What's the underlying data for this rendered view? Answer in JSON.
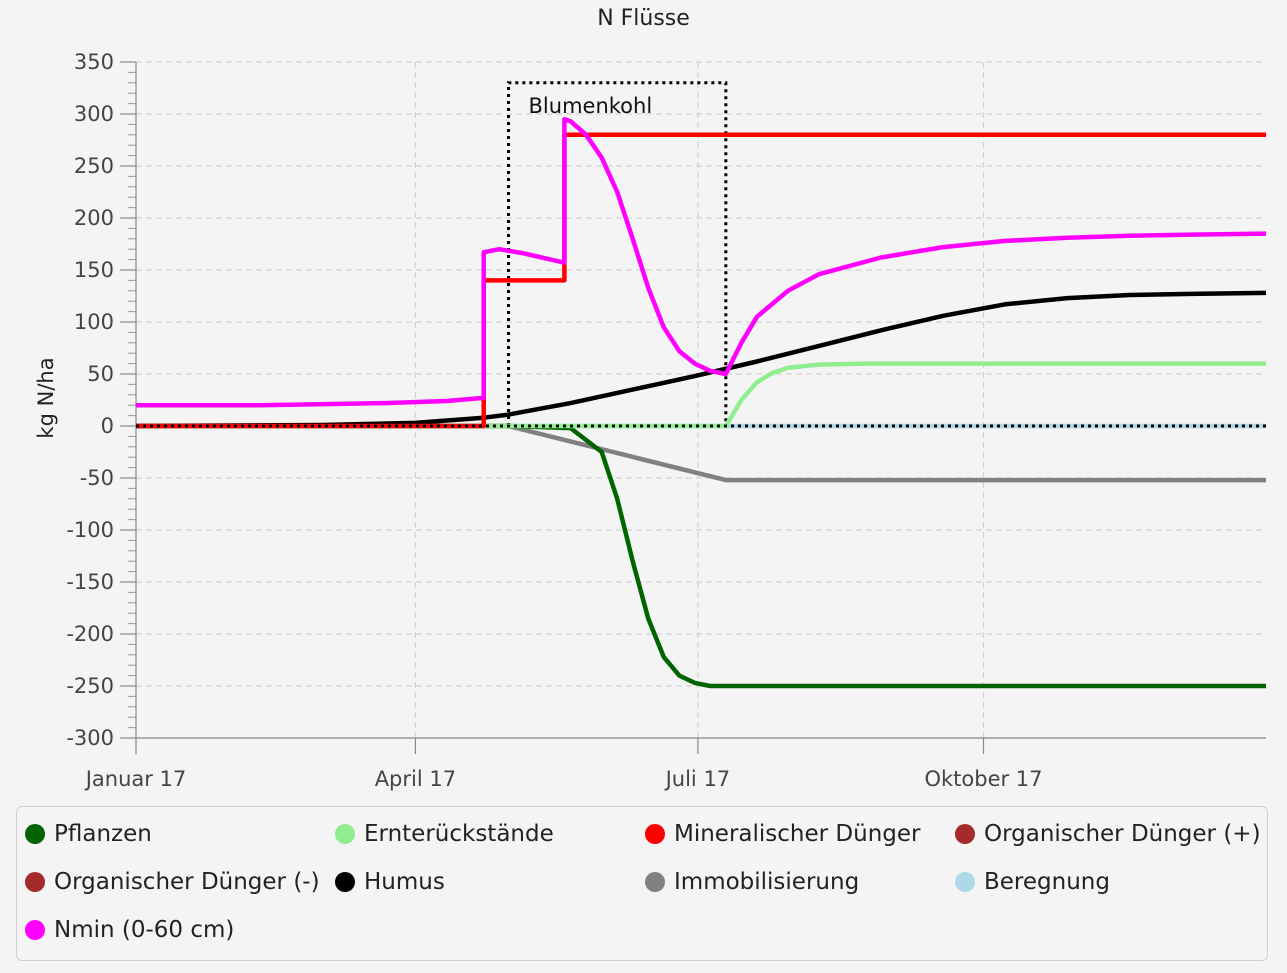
{
  "chart_data": {
    "type": "line",
    "title": "N Flüsse",
    "ylabel": "kg N/ha",
    "xlabel": "",
    "ylim": [
      -300,
      350
    ],
    "xlim": [
      0,
      364
    ],
    "y_ticks": [
      350,
      300,
      250,
      200,
      150,
      100,
      50,
      0,
      -50,
      -100,
      -150,
      -200,
      -250,
      -300
    ],
    "x_ticks": [
      {
        "label": "Januar 17",
        "day": 0
      },
      {
        "label": "April 17",
        "day": 90
      },
      {
        "label": "Juli 17",
        "day": 181
      },
      {
        "label": "Oktober 17",
        "day": 273
      }
    ],
    "grid": true,
    "legend_position": "bottom",
    "annotations": [
      {
        "label": "Blumenkohl",
        "type": "crop-period",
        "x_start": 120,
        "x_end": 190,
        "y_top": 330
      }
    ],
    "series": [
      {
        "name": "Pflanzen",
        "color": "#006400",
        "x": [
          0,
          120,
          140,
          150,
          155,
          160,
          165,
          170,
          175,
          180,
          185,
          190,
          364
        ],
        "y": [
          0,
          0,
          -2,
          -25,
          -70,
          -130,
          -185,
          -222,
          -240,
          -247,
          -250,
          -250,
          -250
        ]
      },
      {
        "name": "Ernterückstände",
        "color": "#90ee90",
        "x": [
          0,
          190,
          195,
          200,
          205,
          210,
          220,
          235,
          364
        ],
        "y": [
          0,
          0,
          25,
          42,
          51,
          56,
          59,
          60,
          60
        ]
      },
      {
        "name": "Mineralischer Dünger",
        "color": "#ff0000",
        "x": [
          0,
          112,
          112,
          138,
          138,
          364
        ],
        "y": [
          0,
          0,
          140,
          140,
          280,
          280
        ]
      },
      {
        "name": "Organischer Dünger (+)",
        "color": "#a52a2a",
        "x": [],
        "y": []
      },
      {
        "name": "Organischer Dünger (-)",
        "color": "#a52a2a",
        "x": [],
        "y": []
      },
      {
        "name": "Humus",
        "color": "#000000",
        "x": [
          0,
          60,
          90,
          112,
          120,
          140,
          160,
          180,
          200,
          220,
          240,
          260,
          280,
          300,
          320,
          340,
          364
        ],
        "y": [
          0,
          1,
          3,
          8,
          11,
          22,
          35,
          48,
          62,
          77,
          92,
          106,
          117,
          123,
          126,
          127,
          128
        ]
      },
      {
        "name": "Immobilisierung",
        "color": "#808080",
        "x": [
          0,
          120,
          190,
          364
        ],
        "y": [
          0,
          0,
          -52,
          -52
        ]
      },
      {
        "name": "Beregnung",
        "color": "#add8e6",
        "x": [
          0,
          364
        ],
        "y": [
          0,
          0
        ]
      },
      {
        "name": "Nmin (0-60 cm)",
        "color": "#ff00ff",
        "x": [
          0,
          40,
          80,
          100,
          112,
          112,
          117,
          125,
          138,
          138,
          140,
          145,
          150,
          155,
          160,
          165,
          170,
          175,
          180,
          185,
          190,
          195,
          200,
          210,
          220,
          240,
          260,
          280,
          300,
          320,
          340,
          364
        ],
        "y": [
          20,
          20,
          22,
          24,
          27,
          167,
          170,
          166,
          157,
          295,
          293,
          280,
          258,
          225,
          180,
          133,
          95,
          72,
          60,
          53,
          50,
          80,
          105,
          130,
          146,
          162,
          172,
          178,
          181,
          183,
          184,
          185
        ]
      }
    ]
  }
}
